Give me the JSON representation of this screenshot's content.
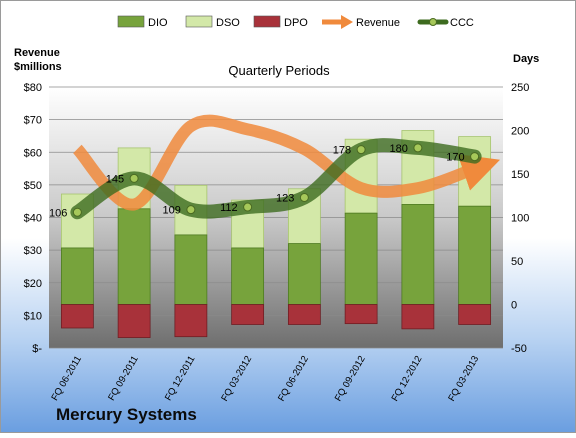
{
  "chart_data": {
    "type": "bar",
    "title": "Quarterly Periods",
    "company": "Mercury Systems",
    "left_axis_label": "Revenue\n$millions",
    "right_axis_label": "Days",
    "categories": [
      "FQ 06-2011",
      "FQ 09-2011",
      "FQ 12-2011",
      "FQ 03-2012",
      "FQ 06-2012",
      "FQ 09-2012",
      "FQ 12-2012",
      "FQ 03-2013"
    ],
    "left_axis": {
      "min": 0,
      "max": 80,
      "step": 10,
      "tick_labels": [
        "$-",
        "$10",
        "$20",
        "$30",
        "$40",
        "$50",
        "$60",
        "$70",
        "$80"
      ]
    },
    "right_axis": {
      "min": -50,
      "max": 250,
      "step": 50,
      "tick_labels": [
        "-50",
        "0",
        "50",
        "100",
        "150",
        "200",
        "250"
      ]
    },
    "series": [
      {
        "name": "DIO",
        "kind": "bar",
        "axis": "right",
        "color": "#77a33c",
        "values": [
          65,
          110,
          80,
          65,
          70,
          105,
          115,
          113
        ]
      },
      {
        "name": "DSO",
        "kind": "bar-stacked",
        "axis": "right",
        "color": "#d3e8a8",
        "values": [
          62,
          70,
          57,
          55,
          63,
          85,
          85,
          80
        ]
      },
      {
        "name": "DPO",
        "kind": "bar-negative",
        "axis": "right",
        "color": "#a8323a",
        "values": [
          -27,
          -38,
          -37,
          -23,
          -23,
          -22,
          -28,
          -23
        ]
      },
      {
        "name": "Revenue",
        "kind": "line",
        "axis": "left",
        "color": "#f08a3c",
        "values": [
          61,
          44,
          68,
          67,
          61,
          49,
          49,
          55
        ]
      },
      {
        "name": "CCC",
        "kind": "line",
        "axis": "right",
        "color": "#3d6b1f",
        "values": [
          106,
          145,
          109,
          112,
          123,
          178,
          180,
          170
        ],
        "labels": [
          "106",
          "145",
          "109",
          "112",
          "123",
          "178",
          "180",
          "170"
        ]
      }
    ],
    "legend_placement": "top",
    "grid": true
  }
}
